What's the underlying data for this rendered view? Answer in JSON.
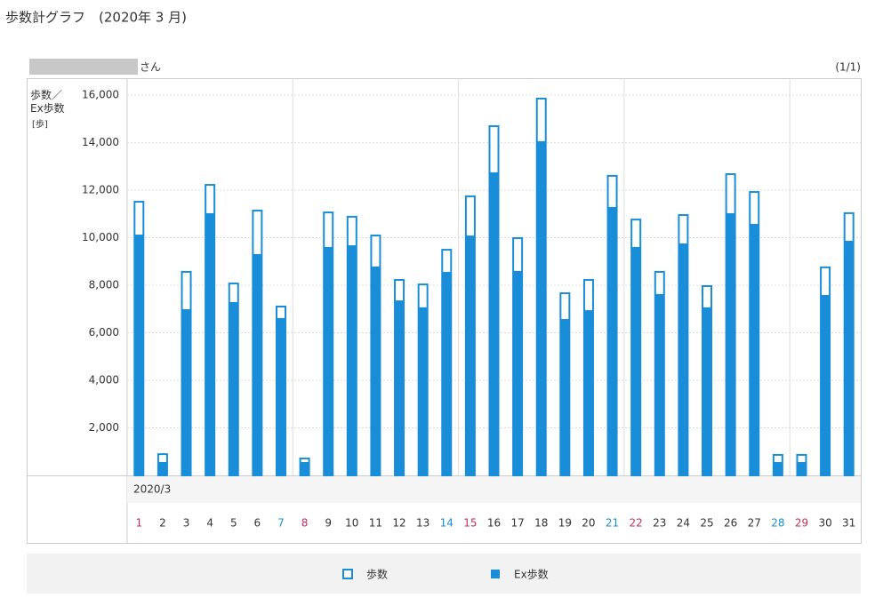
{
  "chart_data": {
    "type": "bar",
    "title": "歩数計グラフ　(2020年 3 月)",
    "user_suffix": "さん",
    "page": "(1/1)",
    "y_label": "歩数／Ex歩数",
    "y_unit": "[歩]",
    "x_group_label": "2020/3",
    "categories": [
      "1",
      "2",
      "3",
      "4",
      "5",
      "6",
      "7",
      "8",
      "9",
      "10",
      "11",
      "12",
      "13",
      "14",
      "15",
      "16",
      "17",
      "18",
      "19",
      "20",
      "21",
      "22",
      "23",
      "24",
      "25",
      "26",
      "27",
      "28",
      "29",
      "30",
      "31"
    ],
    "category_colors": [
      "#c0305a",
      "#333",
      "#333",
      "#333",
      "#333",
      "#333",
      "#1a8dd8",
      "#c0305a",
      "#333",
      "#333",
      "#333",
      "#333",
      "#333",
      "#1a8dd8",
      "#c0305a",
      "#333",
      "#333",
      "#333",
      "#333",
      "#333",
      "#1a8dd8",
      "#c0305a",
      "#333",
      "#333",
      "#333",
      "#333",
      "#333",
      "#1a8dd8",
      "#c0305a",
      "#333",
      "#333"
    ],
    "series": [
      {
        "name": "歩数",
        "color": "#1a8dd8",
        "style": "outline",
        "values": [
          11550,
          930,
          8600,
          12260,
          8110,
          11180,
          7140,
          750,
          11100,
          10920,
          10130,
          8260,
          8070,
          9530,
          11780,
          14730,
          10020,
          15890,
          7700,
          8260,
          12640,
          10800,
          8600,
          10990,
          8000,
          12710,
          11960,
          900,
          900,
          8790,
          11070
        ]
      },
      {
        "name": "Ex歩数",
        "color": "#1a8dd8",
        "style": "filled",
        "values": [
          10130,
          560,
          6990,
          11030,
          7290,
          9310,
          6620,
          560,
          9610,
          9680,
          8790,
          7360,
          7070,
          8560,
          10090,
          12750,
          8600,
          14060,
          6580,
          6950,
          11290,
          9610,
          7630,
          9760,
          7070,
          11030,
          10580,
          560,
          560,
          7590,
          9870
        ]
      }
    ],
    "ylim": [
      0,
      16000
    ],
    "yticks": [
      {
        "value": 2000,
        "label": "2,000"
      },
      {
        "value": 4000,
        "label": "4,000"
      },
      {
        "value": 6000,
        "label": "6,000"
      },
      {
        "value": 8000,
        "label": "8,000"
      },
      {
        "value": 10000,
        "label": "10,000"
      },
      {
        "value": 12000,
        "label": "12,000"
      },
      {
        "value": 14000,
        "label": "14,000"
      },
      {
        "value": 16000,
        "label": "16,000"
      }
    ],
    "grid": true
  }
}
